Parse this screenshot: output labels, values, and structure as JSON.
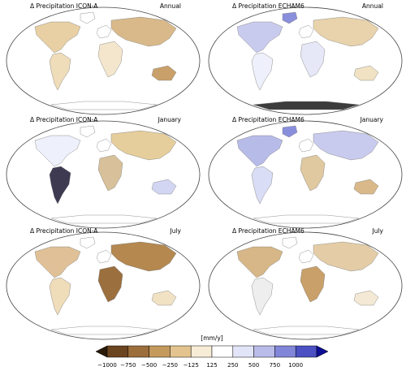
{
  "panels": [
    {
      "title": "Δ Precipitation ICON-A",
      "period": "Annual"
    },
    {
      "title": "Δ Precipitation ECHAM6",
      "period": "Annual"
    },
    {
      "title": "Δ Precipitation ICON-A",
      "period": "January"
    },
    {
      "title": "Δ Precipitation ECHAM6",
      "period": "January"
    },
    {
      "title": "Δ Precipitation ICON-A",
      "period": "July"
    },
    {
      "title": "Δ Precipitation ECHAM6",
      "period": "July"
    }
  ],
  "colorbar": {
    "units": "[mm/y]",
    "ticks": [
      "−1000",
      "−750",
      "−500",
      "−250",
      "−125",
      "125",
      "250",
      "500",
      "750",
      "1000"
    ],
    "colors": [
      "#2b1a08",
      "#6b4420",
      "#9b6e3c",
      "#c49a5c",
      "#e3c48e",
      "#f7ecd6",
      "#ffffff",
      "#e2e4f7",
      "#b9bce9",
      "#8186d8",
      "#4b50c2",
      "#0d0f93"
    ]
  }
}
